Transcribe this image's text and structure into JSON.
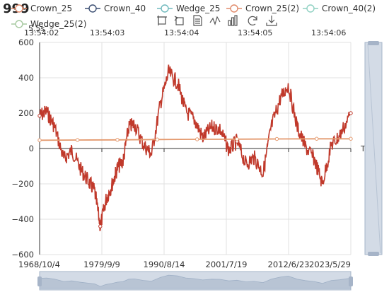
{
  "header": {
    "corner_value": "999"
  },
  "toolbar": {
    "zoom_icon": "zoom-icon",
    "zoom_reset_icon": "zoom-reset-icon",
    "data_view_icon": "data-view-icon",
    "line_icon": "line-chart-icon",
    "bar_icon": "bar-chart-icon",
    "restore_icon": "restore-icon",
    "save_icon": "save-image-icon"
  },
  "timeline": {
    "times": [
      "13:54:02",
      "13:54:03",
      "13:54:04",
      "13:54:05",
      "13:54:06"
    ],
    "overlap_text": "5.5s"
  },
  "legend": [
    {
      "name": "Crown_25",
      "color": "#e08a6a"
    },
    {
      "name": "Crown_40",
      "color": "#3b4e72"
    },
    {
      "name": "Wedge_25",
      "color": "#6fb9bd"
    },
    {
      "name": "Crown_25(2)",
      "color": "#e08a6a"
    },
    {
      "name": "Crown_40(2)",
      "color": "#8fd1c2"
    },
    {
      "name": "Wedge_25(2)",
      "color": "#a6c9a0"
    }
  ],
  "colors": {
    "main_series": "#c0392b",
    "flat_series": "#e49a6f",
    "grid": "#e0e0e0",
    "axis": "#333333",
    "slider_fill": "#d3dbe6",
    "slider_border": "#a6b4c8"
  },
  "chart_data": {
    "type": "line",
    "title": "",
    "xlabel": "",
    "ylabel": "",
    "y_unit": "T/秒",
    "ylim": [
      -600,
      600
    ],
    "y_ticks": [
      "600",
      "400",
      "200",
      "0",
      "−200",
      "−400",
      "−600"
    ],
    "x_tick_labels": [
      "1968/10/4",
      "1979/9/9",
      "1990/8/14",
      "2001/7/19",
      "2012/6/23",
      "2023/5/29"
    ],
    "x_range": [
      "1968/10/4",
      "2023/5/29"
    ],
    "grid": true,
    "legend_position": "top",
    "series": [
      {
        "name": "Crown_25",
        "color": "#c0392b",
        "x": [
          "1968/10/4",
          "1970/1/1",
          "1971/6/1",
          "1973/1/1",
          "1974/6/1",
          "1976/1/1",
          "1977/6/1",
          "1978/6/1",
          "1979/6/1",
          "1980/6/1",
          "1981/6/1",
          "1982/6/1",
          "1983/6/1",
          "1984/6/1",
          "1985/6/1",
          "1987/1/1",
          "1988/6/1",
          "1990/1/1",
          "1991/6/1",
          "1993/1/1",
          "1994/6/1",
          "1996/1/1",
          "1997/6/1",
          "1999/1/1",
          "2000/6/1",
          "2002/1/1",
          "2003/6/1",
          "2005/1/1",
          "2006/6/1",
          "2008/1/1",
          "2009/6/1",
          "2011/1/1",
          "2012/6/1",
          "2014/1/1",
          "2015/6/1",
          "2017/1/1",
          "2018/6/1",
          "2020/1/1",
          "2021/6/1",
          "2023/5/29"
        ],
        "values": [
          185,
          210,
          120,
          -60,
          -10,
          -120,
          -190,
          -240,
          -440,
          -290,
          -210,
          -110,
          -70,
          120,
          140,
          20,
          -30,
          260,
          430,
          370,
          210,
          160,
          60,
          120,
          110,
          -10,
          40,
          -90,
          -50,
          -140,
          120,
          280,
          360,
          120,
          10,
          -60,
          -200,
          20,
          70,
          200
        ]
      },
      {
        "name": "Crown_25(2)",
        "color": "#e49a6f",
        "x": [
          "1968/10/4",
          "1975/6/1",
          "1982/6/1",
          "1989/6/1",
          "1996/6/1",
          "2003/6/1",
          "2010/6/1",
          "2017/6/1",
          "2023/5/29"
        ],
        "values": [
          47,
          48,
          49,
          51,
          52,
          53,
          54,
          55,
          55
        ]
      }
    ]
  }
}
